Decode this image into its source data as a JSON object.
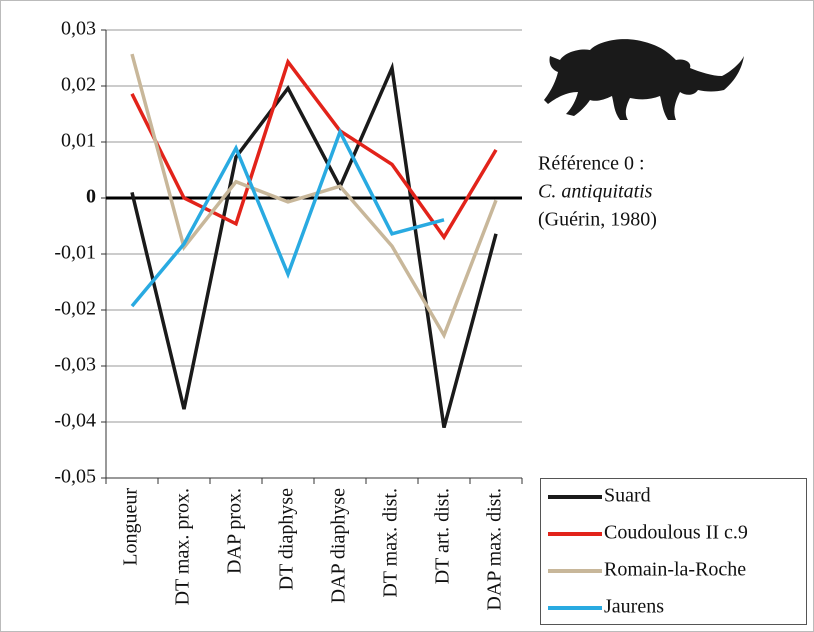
{
  "chart_data": {
    "type": "line",
    "categories": [
      "Longueur",
      "DT max. prox.",
      "DAP prox.",
      "DT diaphyse",
      "DAP diaphyse",
      "DT max. dist.",
      "DT art. dist.",
      "DAP max. dist."
    ],
    "series": [
      {
        "name": "Suard",
        "color": "#1a1a1a",
        "values": [
          0.001,
          -0.0377,
          0.0073,
          0.0196,
          0.002,
          0.0232,
          -0.041,
          -0.0064
        ]
      },
      {
        "name": "Coudoulous II c.9",
        "color": "#e2231a",
        "values": [
          0.0186,
          0,
          -0.0046,
          0.0243,
          0.012,
          0.006,
          -0.007,
          0.0086
        ]
      },
      {
        "name": "Romain-la-Roche",
        "color": "#c8b79a",
        "values": [
          0.0257,
          -0.0088,
          0.0029,
          -0.0007,
          0.0021,
          -0.0086,
          -0.0245,
          -0.0004
        ]
      },
      {
        "name": "Jaurens",
        "color": "#29aae1",
        "values": [
          -0.0193,
          -0.0082,
          0.0089,
          -0.0136,
          0.0118,
          -0.0064,
          -0.0039,
          null
        ]
      }
    ],
    "ylim": [
      -0.05,
      0.03
    ],
    "yticks": [
      {
        "value": 0.03,
        "label": "0,03"
      },
      {
        "value": 0.02,
        "label": "0,02"
      },
      {
        "value": 0.01,
        "label": "0,01"
      },
      0,
      {
        "value": -0.01,
        "label": "-0,01"
      },
      {
        "value": -0.02,
        "label": "-0,02"
      },
      {
        "value": -0.03,
        "label": "-0,03"
      },
      {
        "value": -0.04,
        "label": "-0,04"
      },
      {
        "value": -0.05,
        "label": "-0,05"
      }
    ],
    "grid": true,
    "legend": "bottom-right",
    "annotation": [
      "Référence 0 :",
      "C. antiquitatis",
      "(Guérin, 1980)"
    ]
  }
}
